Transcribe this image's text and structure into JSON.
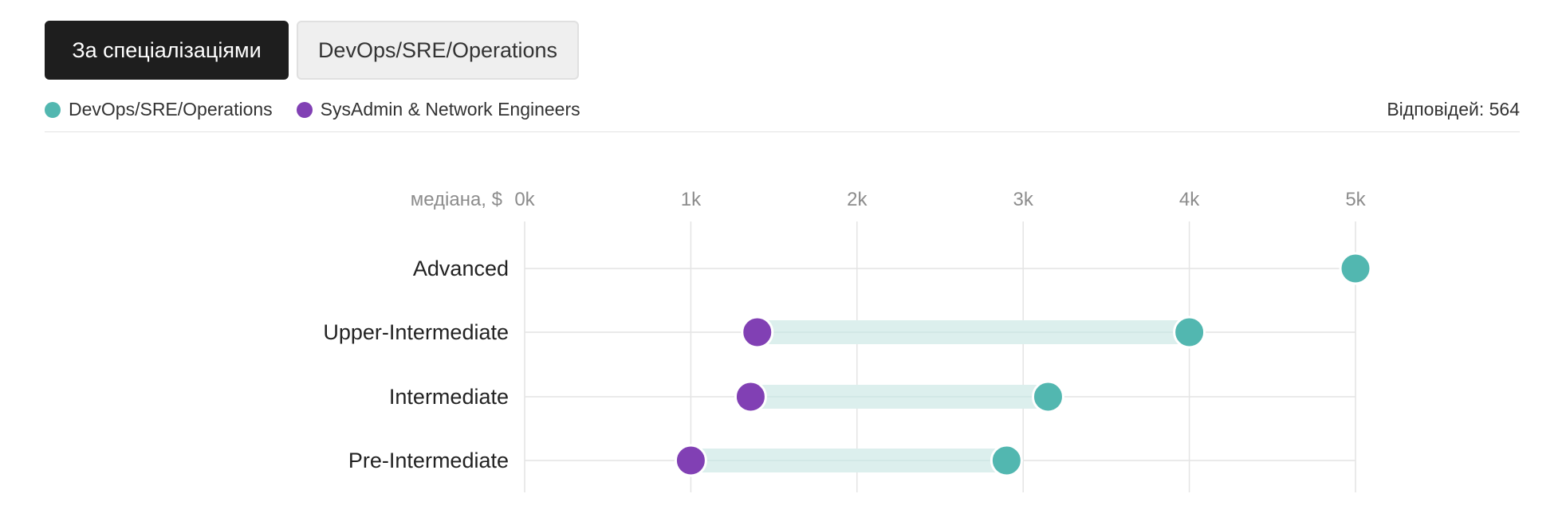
{
  "tabs": {
    "active_label": "За спеціалізаціями",
    "inactive_label": "DevOps/SRE/Operations"
  },
  "legend": {
    "devops_label": "DevOps/SRE/Operations",
    "sysadmin_label": "SysAdmin & Network Engineers"
  },
  "responses_text": "Відповідей: 564",
  "colors": {
    "devops": "#52b7b0",
    "sysadmin": "#8140b4",
    "range_band": "#dcefed",
    "grid": "#e4e4e4"
  },
  "chart_data": {
    "type": "dumbbell",
    "axis_prefix": "медіана, $",
    "x_ticks": [
      "0k",
      "1k",
      "2k",
      "3k",
      "4k",
      "5k"
    ],
    "xlim": [
      0,
      5000
    ],
    "categories": [
      "Advanced",
      "Upper-Intermediate",
      "Intermediate",
      "Pre-Intermediate"
    ],
    "series": [
      {
        "name": "DevOps/SRE/Operations",
        "values": [
          5000,
          4000,
          3150,
          2900
        ]
      },
      {
        "name": "SysAdmin & Network Engineers",
        "values": [
          null,
          1400,
          1360,
          1000
        ]
      }
    ]
  }
}
